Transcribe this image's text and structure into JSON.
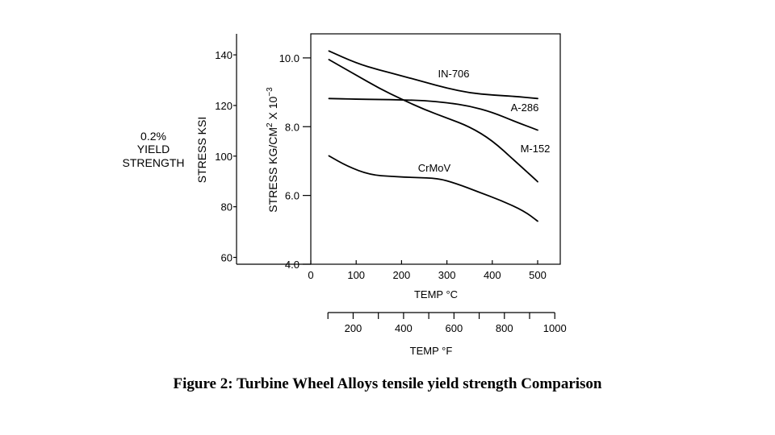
{
  "chart_data": {
    "type": "line",
    "side_note": [
      "0.2%",
      "YIELD",
      "STRENGTH"
    ],
    "y_ksi": {
      "label": "STRESS KSI",
      "ticks": [
        60,
        80,
        100,
        120,
        140
      ],
      "tick_labels": [
        "60",
        "80",
        "100",
        "120",
        "140"
      ],
      "range": [
        57.3,
        148.3
      ]
    },
    "y_kg": {
      "label_main": "STRESS KG/CM",
      "label_sup1": "2",
      "label_mid": " X 10",
      "label_sup2": "−3",
      "ticks": [
        4.0,
        6.0,
        8.0,
        10.0
      ],
      "tick_labels": [
        "4.0",
        "6.0",
        "8.0",
        "10.0"
      ],
      "range": [
        4.0,
        10.7
      ]
    },
    "x_c": {
      "label": "TEMP °C",
      "ticks": [
        0,
        100,
        200,
        300,
        400,
        500
      ],
      "tick_labels": [
        "0",
        "100",
        "200",
        "300",
        "400",
        "500"
      ],
      "range": [
        0,
        550
      ]
    },
    "x_f": {
      "label": "TEMP °F",
      "ticks": [
        200,
        400,
        600,
        800,
        1000
      ],
      "tick_labels": [
        "200",
        "400",
        "600",
        "800",
        "1000"
      ],
      "range": [
        100,
        1000
      ]
    },
    "series": [
      {
        "name": "IN-706",
        "x": [
          40,
          100,
          150,
          200,
          250,
          300,
          350,
          400,
          450,
          500
        ],
        "y": [
          10.2,
          9.85,
          9.65,
          9.48,
          9.3,
          9.12,
          8.98,
          8.92,
          8.88,
          8.82
        ]
      },
      {
        "name": "A-286",
        "x": [
          40,
          100,
          150,
          200,
          250,
          300,
          350,
          400,
          450,
          500
        ],
        "y": [
          8.82,
          8.8,
          8.79,
          8.78,
          8.76,
          8.7,
          8.6,
          8.42,
          8.15,
          7.9
        ]
      },
      {
        "name": "M-152",
        "x": [
          40,
          100,
          150,
          200,
          250,
          300,
          350,
          400,
          450,
          500
        ],
        "y": [
          9.95,
          9.5,
          9.12,
          8.8,
          8.5,
          8.25,
          8.0,
          7.6,
          7.0,
          6.4
        ]
      },
      {
        "name": "CrMoV",
        "x": [
          40,
          80,
          130,
          180,
          230,
          280,
          320,
          370,
          420,
          470,
          500
        ],
        "y": [
          7.15,
          6.85,
          6.6,
          6.55,
          6.52,
          6.5,
          6.35,
          6.1,
          5.85,
          5.55,
          5.25
        ]
      }
    ]
  },
  "caption": "Figure 2: Turbine Wheel Alloys tensile yield strength Comparison"
}
